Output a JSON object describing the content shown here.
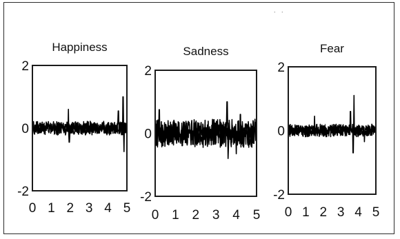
{
  "chart_data": [
    {
      "type": "line",
      "title": "Happiness",
      "xlabel": "",
      "ylabel": "",
      "xlim": [
        0,
        5
      ],
      "ylim": [
        -2,
        2
      ],
      "xticks": [
        "0",
        "1",
        "2",
        "3",
        "4",
        "5"
      ],
      "yticks": [
        "2",
        "0",
        "-2"
      ],
      "grid": false,
      "amplitude": 0.22,
      "spikes": [
        {
          "x": 1.9,
          "y": 0.6
        },
        {
          "x": 1.95,
          "y": -0.45
        },
        {
          "x": 4.55,
          "y": 0.55
        },
        {
          "x": 4.8,
          "y": 1.0
        },
        {
          "x": 4.85,
          "y": -0.75
        }
      ]
    },
    {
      "type": "line",
      "title": "Sadness",
      "xlabel": "",
      "ylabel": "",
      "xlim": [
        0,
        5
      ],
      "ylim": [
        -2,
        2
      ],
      "xticks": [
        "0",
        "1",
        "2",
        "3",
        "4",
        "5"
      ],
      "yticks": [
        "2",
        "0",
        "-2"
      ],
      "grid": false,
      "amplitude": 0.45,
      "spikes": [
        {
          "x": 0.2,
          "y": 0.75
        },
        {
          "x": 3.55,
          "y": 1.0
        },
        {
          "x": 3.6,
          "y": -0.8
        },
        {
          "x": 4.0,
          "y": -0.65
        },
        {
          "x": 4.2,
          "y": 0.6
        }
      ]
    },
    {
      "type": "line",
      "title": "Fear",
      "xlabel": "",
      "ylabel": "",
      "xlim": [
        0,
        5
      ],
      "ylim": [
        -2,
        2
      ],
      "xticks": [
        "0",
        "1",
        "2",
        "3",
        "4",
        "5"
      ],
      "yticks": [
        "2",
        "0",
        "-2"
      ],
      "grid": false,
      "amplitude": 0.2,
      "spikes": [
        {
          "x": 1.5,
          "y": 0.45
        },
        {
          "x": 3.55,
          "y": 0.6
        },
        {
          "x": 3.75,
          "y": 1.1
        },
        {
          "x": 3.7,
          "y": -0.7
        },
        {
          "x": 4.35,
          "y": -0.35
        }
      ]
    }
  ],
  "stray_mark": ". ."
}
